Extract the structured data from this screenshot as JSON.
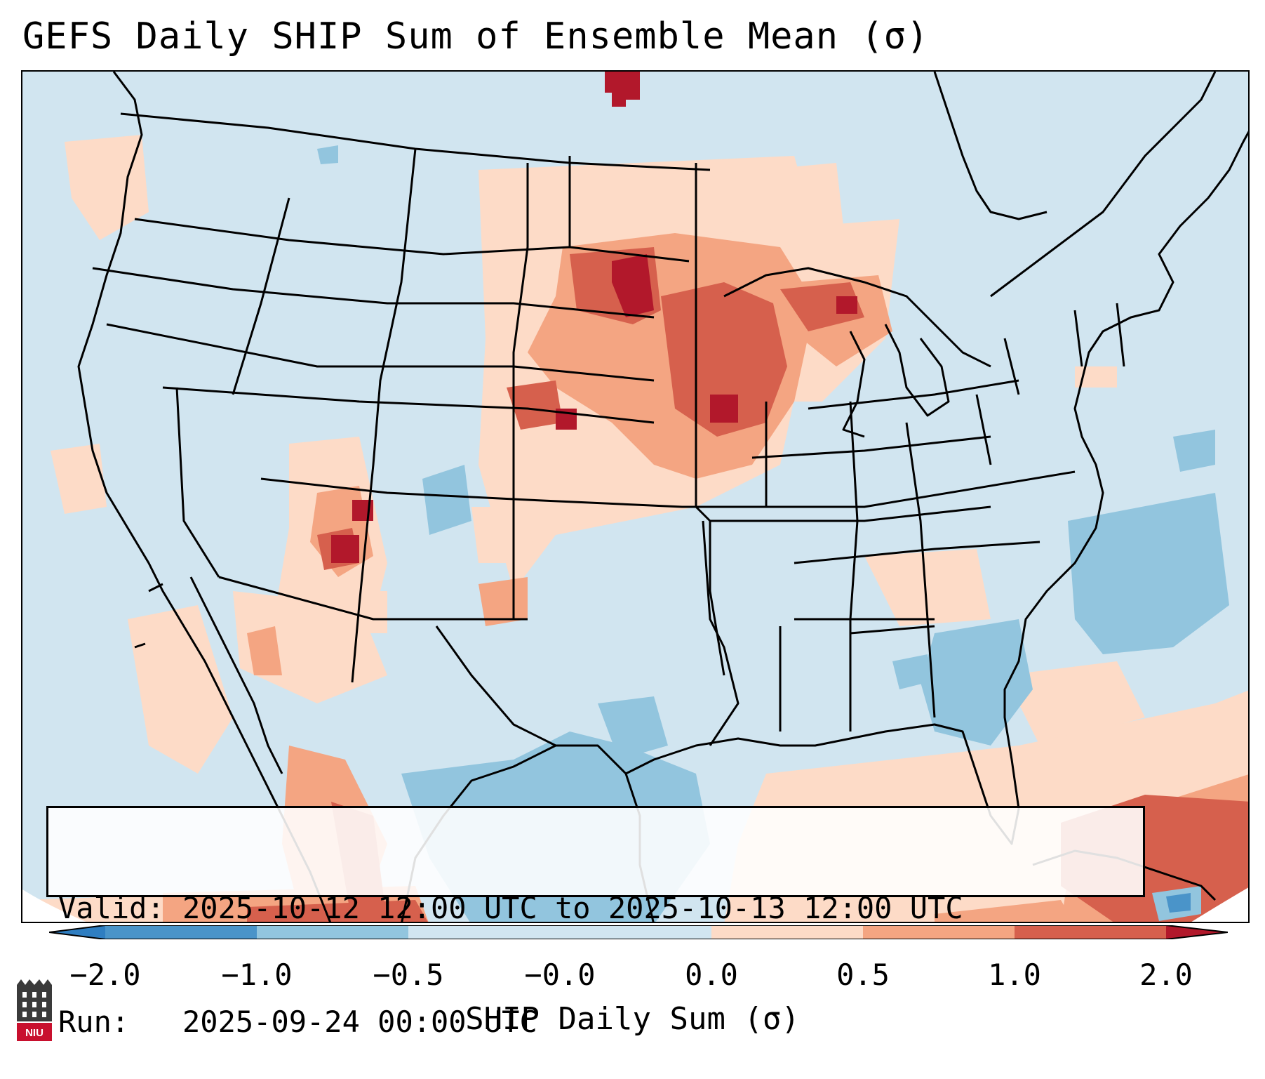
{
  "title": "GEFS Daily SHIP Sum of Ensemble Mean (σ)",
  "info": {
    "valid_label": "Valid:",
    "valid_value": "2025-10-12 12:00 UTC to 2025-10-13 12:00 UTC",
    "run_label": "Run:",
    "run_value": "2025-09-24 00:00 UTC"
  },
  "colorbar": {
    "label": "SHIP Daily Sum (σ)",
    "ticks": [
      "−2.0",
      "−1.0",
      "−0.5",
      "−0.0",
      "0.0",
      "0.5",
      "1.0",
      "2.0"
    ],
    "bins": [
      {
        "range": "< -2.0",
        "color": "#2f7ec1"
      },
      {
        "range": "-2.0 to -1.0",
        "color": "#4a94c9"
      },
      {
        "range": "-1.0 to -0.5",
        "color": "#92c5de"
      },
      {
        "range": "-0.5 to -0.0",
        "color": "#d1e5f0"
      },
      {
        "range": "-0.0 to 0.0",
        "color": "#f7f7f7"
      },
      {
        "range": "0.0 to 0.5",
        "color": "#fddbc7"
      },
      {
        "range": "0.5 to 1.0",
        "color": "#f4a582"
      },
      {
        "range": "1.0 to 2.0",
        "color": "#d6604d"
      },
      {
        "range": "> 2.0",
        "color": "#b2182b"
      }
    ]
  },
  "logo": {
    "text": "NIU",
    "icon": "university-logo-icon"
  }
}
